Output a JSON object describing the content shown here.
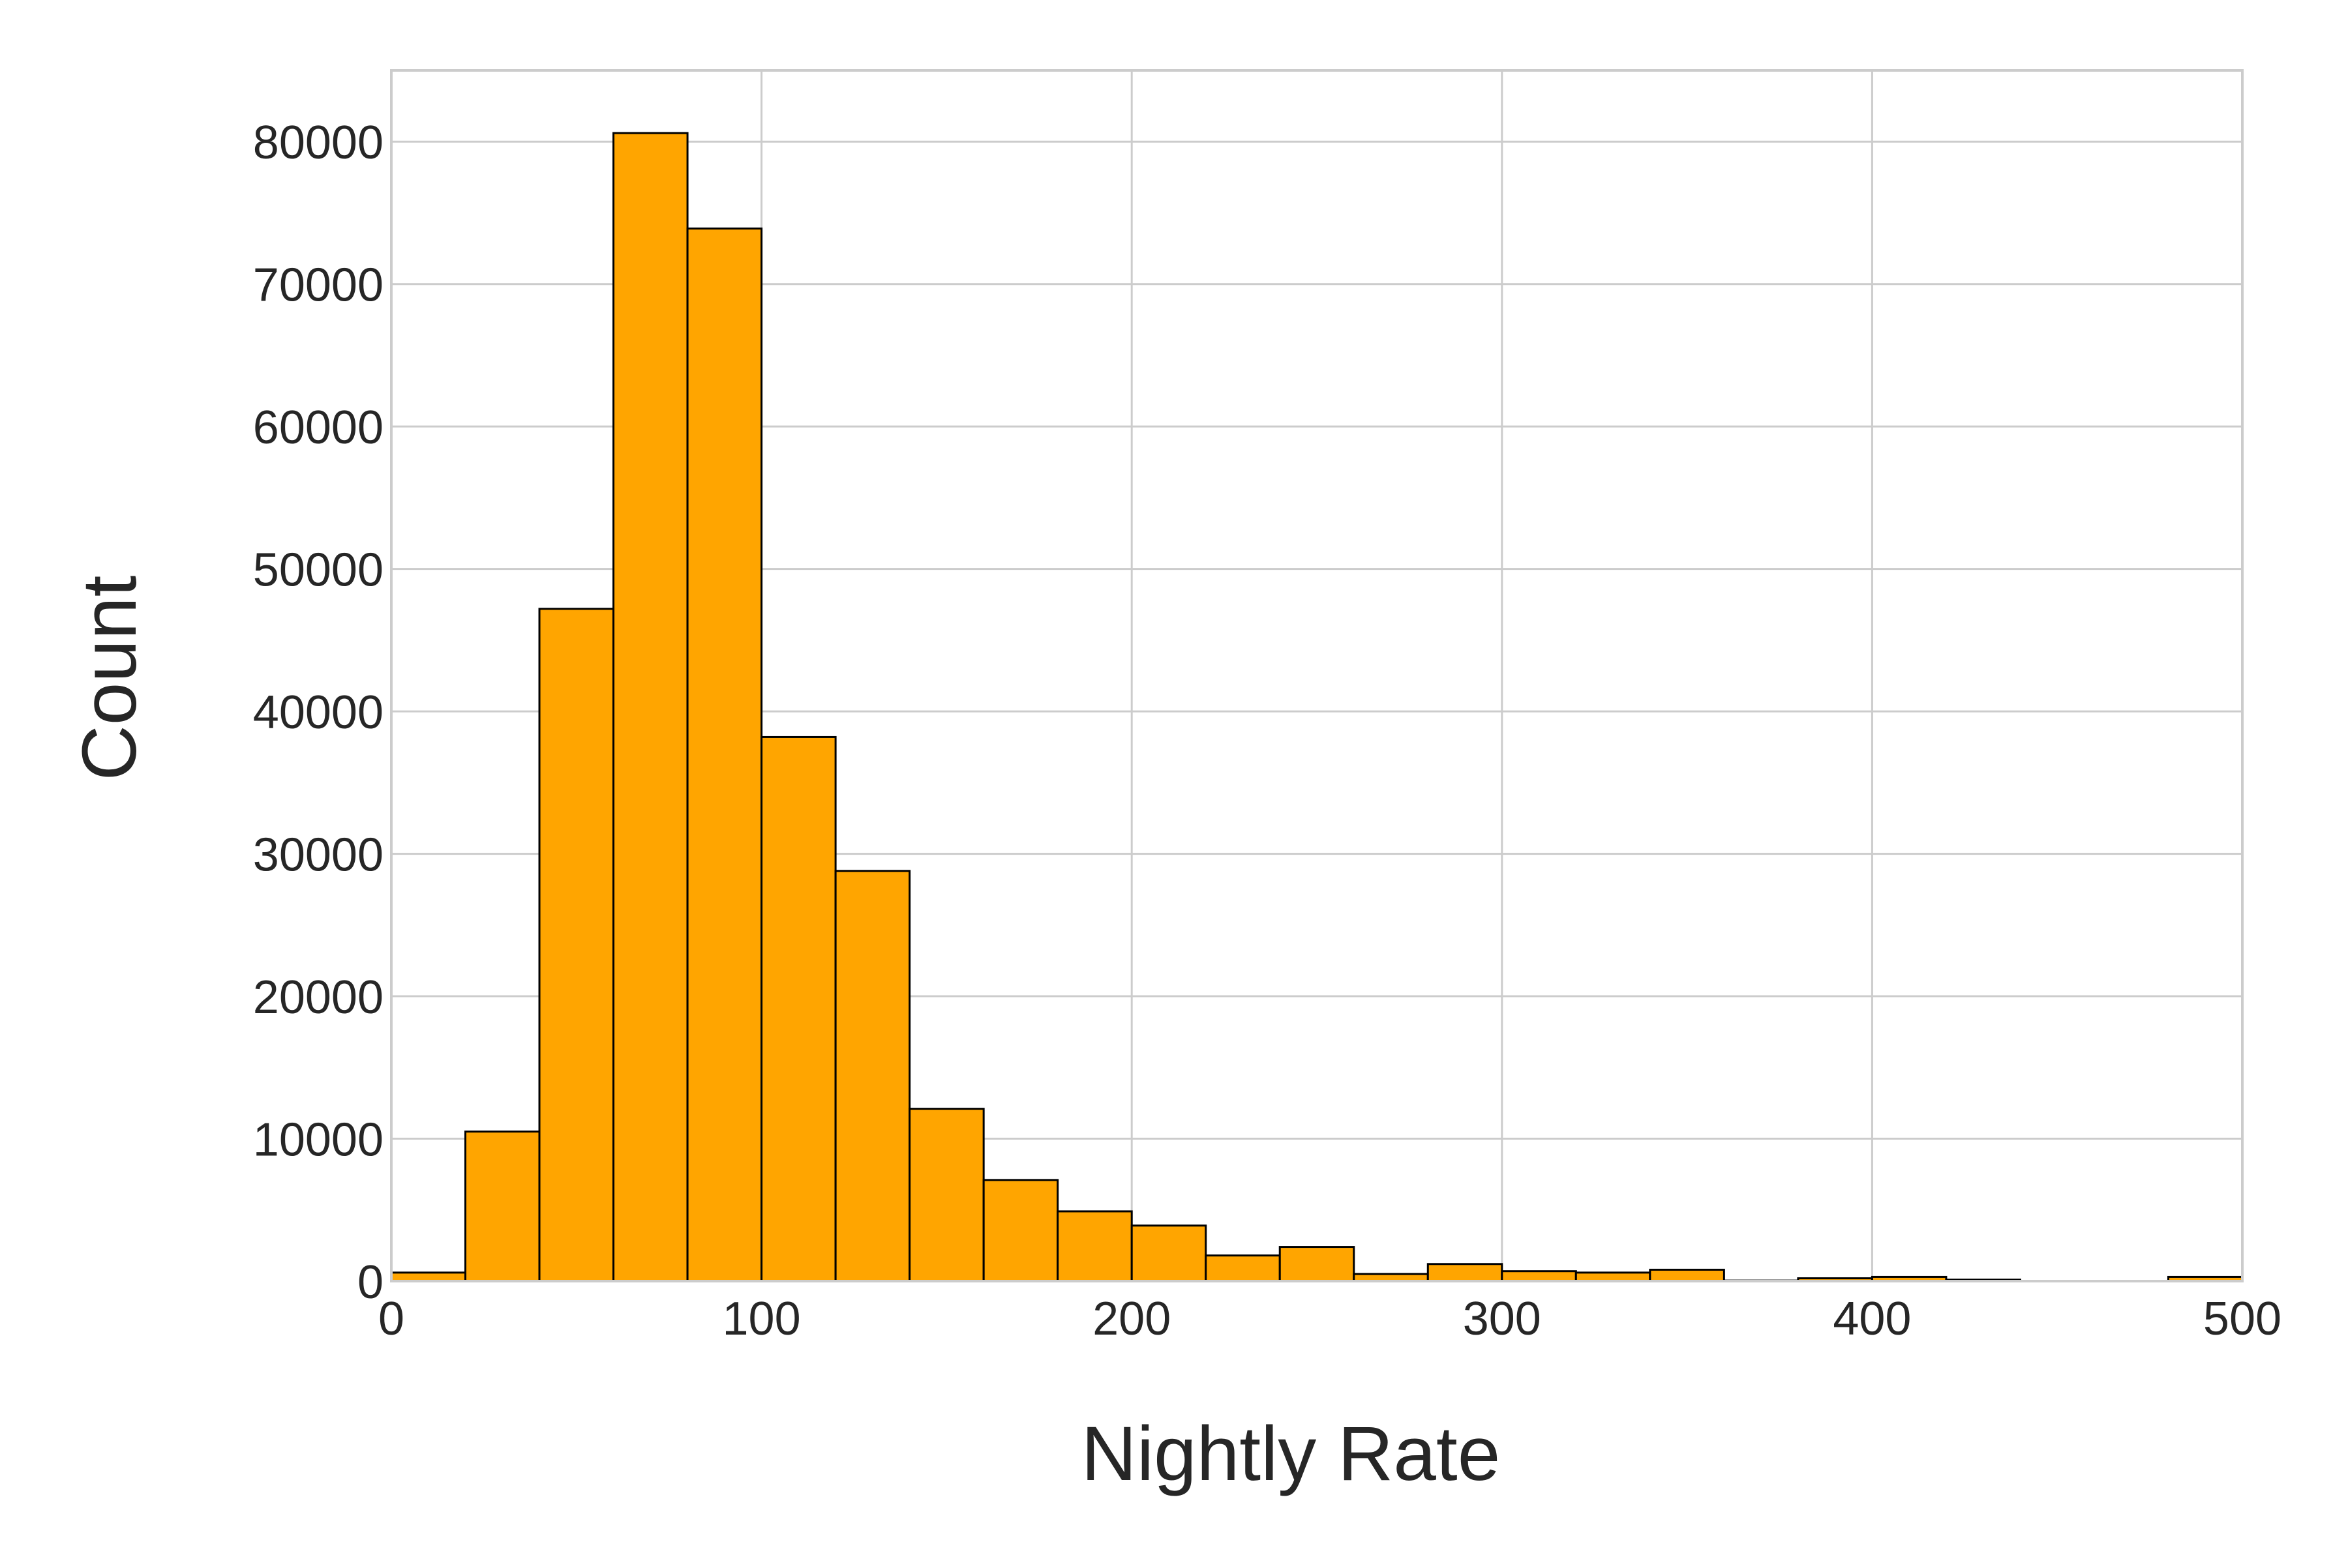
{
  "chart_data": {
    "type": "bar",
    "title": "",
    "xlabel": "Nightly Rate",
    "ylabel": "Count",
    "xlim": [
      0,
      500
    ],
    "ylim": [
      0,
      85000
    ],
    "grid": true,
    "bin_width": 20,
    "x_ticks": [
      0,
      100,
      200,
      300,
      400,
      500
    ],
    "x_tick_labels": [
      "0",
      "100",
      "200",
      "300",
      "400",
      "500"
    ],
    "y_ticks": [
      0,
      10000,
      20000,
      30000,
      40000,
      50000,
      60000,
      70000,
      80000
    ],
    "y_tick_labels": [
      "0",
      "10000",
      "20000",
      "30000",
      "40000",
      "50000",
      "60000",
      "70000",
      "80000"
    ],
    "bins": [
      {
        "start": 0,
        "end": 20,
        "count": 600
      },
      {
        "start": 20,
        "end": 40,
        "count": 10500
      },
      {
        "start": 40,
        "end": 60,
        "count": 47200
      },
      {
        "start": 60,
        "end": 80,
        "count": 80600
      },
      {
        "start": 80,
        "end": 100,
        "count": 73900
      },
      {
        "start": 100,
        "end": 120,
        "count": 38200
      },
      {
        "start": 120,
        "end": 140,
        "count": 28800
      },
      {
        "start": 140,
        "end": 160,
        "count": 12100
      },
      {
        "start": 160,
        "end": 180,
        "count": 7100
      },
      {
        "start": 180,
        "end": 200,
        "count": 4900
      },
      {
        "start": 200,
        "end": 220,
        "count": 3900
      },
      {
        "start": 220,
        "end": 240,
        "count": 1800
      },
      {
        "start": 240,
        "end": 260,
        "count": 2400
      },
      {
        "start": 260,
        "end": 280,
        "count": 500
      },
      {
        "start": 280,
        "end": 300,
        "count": 1200
      },
      {
        "start": 300,
        "end": 320,
        "count": 700
      },
      {
        "start": 320,
        "end": 340,
        "count": 600
      },
      {
        "start": 340,
        "end": 360,
        "count": 800
      },
      {
        "start": 360,
        "end": 380,
        "count": 40
      },
      {
        "start": 380,
        "end": 400,
        "count": 200
      },
      {
        "start": 400,
        "end": 420,
        "count": 300
      },
      {
        "start": 420,
        "end": 440,
        "count": 100
      },
      {
        "start": 440,
        "end": 460,
        "count": 20
      },
      {
        "start": 460,
        "end": 480,
        "count": 20
      },
      {
        "start": 480,
        "end": 500,
        "count": 300
      }
    ]
  },
  "colors": {
    "bar_fill": "#FFA500",
    "bar_edge": "#000000",
    "grid": "#cccccc",
    "text": "#262626"
  }
}
